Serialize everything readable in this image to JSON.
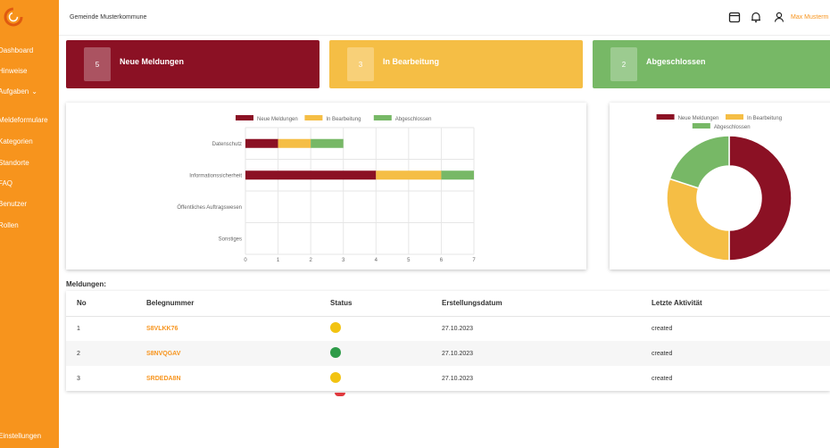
{
  "header": {
    "org_name": "Gemeinde Musterkommune",
    "user_name": "Max Musterm"
  },
  "colors": {
    "accent": "#f7941d",
    "red": "#8b1124",
    "yellow": "#f5be45",
    "green": "#77b866"
  },
  "sidebar": {
    "items": [
      {
        "label": "Dashboard"
      },
      {
        "label": "Hinweise"
      },
      {
        "label": "Aufgaben"
      },
      {
        "label": "Meldeformulare"
      },
      {
        "label": "Kategorien"
      },
      {
        "label": "Standorte"
      },
      {
        "label": "FAQ"
      },
      {
        "label": "Benutzer"
      },
      {
        "label": "Rollen"
      }
    ],
    "settings": "Einstellungen"
  },
  "cards": [
    {
      "count": "5",
      "label": "Neue Meldungen"
    },
    {
      "count": "3",
      "label": "In Bearbeitung"
    },
    {
      "count": "2",
      "label": "Abgeschlossen"
    }
  ],
  "chart_data": [
    {
      "type": "bar",
      "orientation": "horizontal",
      "stacked": true,
      "categories": [
        "Datenschutz",
        "Informationssicherheit",
        "Öffentliches Auftragswesen",
        "Sonstiges"
      ],
      "series": [
        {
          "name": "Neue Meldungen",
          "color": "#8b1124",
          "values": [
            1,
            4,
            0,
            0
          ]
        },
        {
          "name": "In Bearbeitung",
          "color": "#f5be45",
          "values": [
            1,
            2,
            0,
            0
          ]
        },
        {
          "name": "Abgeschlossen",
          "color": "#77b866",
          "values": [
            1,
            1,
            0,
            0
          ]
        }
      ],
      "xlim": [
        0,
        7
      ],
      "xticks": [
        "0",
        "1",
        "2",
        "3",
        "4",
        "5",
        "6",
        "7"
      ],
      "grid": true,
      "legend": "top"
    },
    {
      "type": "pie",
      "donut": true,
      "labels": [
        "Neue Meldungen",
        "In Bearbeitung",
        "Abgeschlossen"
      ],
      "values": [
        5,
        3,
        2
      ],
      "colors": [
        "#8b1124",
        "#f5be45",
        "#77b866"
      ],
      "legend": "top"
    }
  ],
  "table": {
    "title": "Meldungen:",
    "headers": [
      "No",
      "Belegnummer",
      "Status",
      "Erstellungsdatum",
      "Letzte Aktivität"
    ],
    "rows": [
      {
        "no": "1",
        "beleg": "S8VLKK76",
        "status_color": "#f2c311",
        "date": "27.10.2023",
        "activity": "created"
      },
      {
        "no": "2",
        "beleg": "S8NVQGAV",
        "status_color": "#2e9b48",
        "date": "27.10.2023",
        "activity": "created"
      },
      {
        "no": "3",
        "beleg": "SRDEDA8N",
        "status_color": "#f2c311",
        "date": "27.10.2023",
        "activity": "created"
      }
    ],
    "partial_status_color": "#e0393e"
  }
}
